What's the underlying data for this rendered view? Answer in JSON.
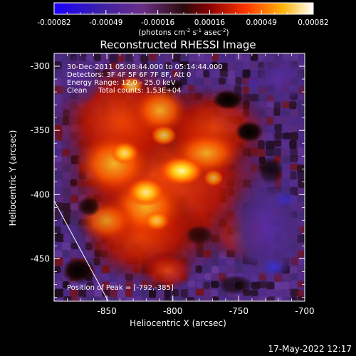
{
  "colorbar": {
    "tick_labels": [
      "-0.00082",
      "-0.00049",
      "-0.00016",
      "0.00016",
      "0.00049",
      "0.00082"
    ],
    "units_prefix": "(photons cm",
    "units_exp1": "-2",
    "units_mid1": " s",
    "units_exp2": "-1",
    "units_mid2": " asec",
    "units_exp3": "-2",
    "units_suffix": ")"
  },
  "image": {
    "title": "Reconstructed RHESSI Image",
    "xlabel": "Heliocentric X (arcsec)",
    "ylabel": "Heliocentric Y (arcsec)",
    "x_ticks": [
      "-850",
      "-800",
      "-750",
      "-700"
    ],
    "y_ticks": [
      "-300",
      "-350",
      "-400",
      "-450"
    ],
    "xlim": [
      -890,
      -700
    ],
    "ylim": [
      -483,
      -290
    ],
    "info_lines": [
      "30-Dec-2011 05:08:44.000 to 05:14:44.000",
      "Detectors: 3F 4F 5F 6F 7F 8F, Att 0",
      "Energy Range: 12.0 - 25.0 keV",
      "Clean     Total counts: 1.53E+04"
    ],
    "peak_label": "Position of Peak = [-792,-385]",
    "peak": [
      -792,
      -385
    ]
  },
  "footer": {
    "timestamp": "17-May-2022 12:17"
  }
}
